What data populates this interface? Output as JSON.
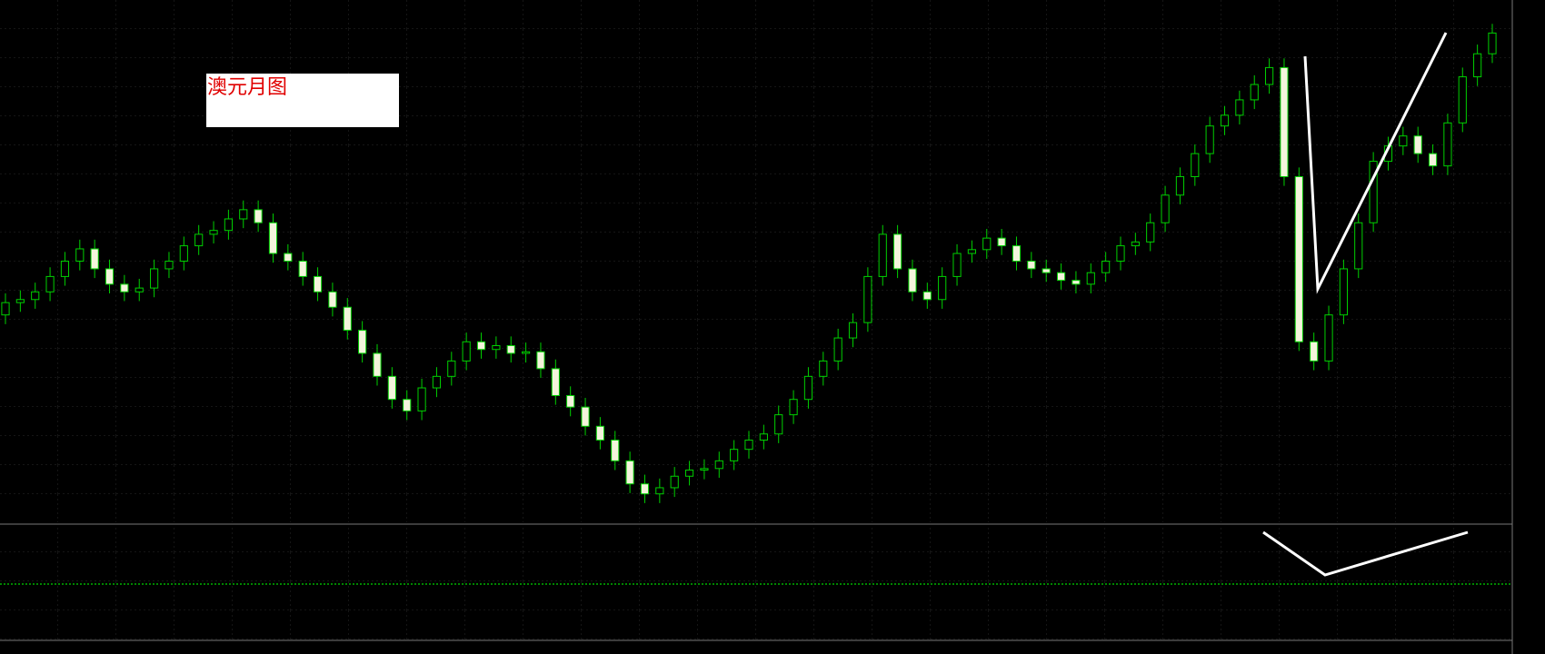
{
  "chart_data": {
    "type": "candlestick",
    "annotation": "澳元月图",
    "up_color": "#00d000",
    "down_color": "#f4f4dc",
    "ylim": [
      0.45,
      1.13
    ],
    "ohlc": [
      [
        0.72,
        0.748,
        0.708,
        0.736
      ],
      [
        0.736,
        0.752,
        0.724,
        0.74
      ],
      [
        0.74,
        0.762,
        0.728,
        0.75
      ],
      [
        0.75,
        0.782,
        0.738,
        0.77
      ],
      [
        0.77,
        0.802,
        0.758,
        0.79
      ],
      [
        0.79,
        0.818,
        0.778,
        0.806
      ],
      [
        0.806,
        0.818,
        0.768,
        0.78
      ],
      [
        0.78,
        0.792,
        0.748,
        0.76
      ],
      [
        0.76,
        0.772,
        0.738,
        0.75
      ],
      [
        0.75,
        0.767,
        0.738,
        0.755
      ],
      [
        0.755,
        0.792,
        0.743,
        0.78
      ],
      [
        0.78,
        0.802,
        0.768,
        0.79
      ],
      [
        0.79,
        0.822,
        0.778,
        0.81
      ],
      [
        0.81,
        0.837,
        0.798,
        0.825
      ],
      [
        0.825,
        0.842,
        0.813,
        0.83
      ],
      [
        0.83,
        0.857,
        0.818,
        0.845
      ],
      [
        0.845,
        0.869,
        0.833,
        0.857
      ],
      [
        0.857,
        0.869,
        0.828,
        0.84
      ],
      [
        0.84,
        0.852,
        0.788,
        0.8
      ],
      [
        0.8,
        0.812,
        0.778,
        0.79
      ],
      [
        0.79,
        0.802,
        0.758,
        0.77
      ],
      [
        0.77,
        0.782,
        0.738,
        0.75
      ],
      [
        0.75,
        0.762,
        0.718,
        0.73
      ],
      [
        0.73,
        0.742,
        0.688,
        0.7
      ],
      [
        0.7,
        0.712,
        0.658,
        0.67
      ],
      [
        0.67,
        0.682,
        0.628,
        0.64
      ],
      [
        0.64,
        0.652,
        0.598,
        0.61
      ],
      [
        0.61,
        0.622,
        0.583,
        0.595
      ],
      [
        0.595,
        0.637,
        0.583,
        0.625
      ],
      [
        0.625,
        0.652,
        0.613,
        0.64
      ],
      [
        0.64,
        0.672,
        0.628,
        0.66
      ],
      [
        0.66,
        0.697,
        0.648,
        0.685
      ],
      [
        0.685,
        0.697,
        0.663,
        0.675
      ],
      [
        0.675,
        0.692,
        0.663,
        0.68
      ],
      [
        0.68,
        0.692,
        0.658,
        0.67
      ],
      [
        0.67,
        0.684,
        0.658,
        0.672
      ],
      [
        0.672,
        0.684,
        0.638,
        0.65
      ],
      [
        0.65,
        0.662,
        0.603,
        0.615
      ],
      [
        0.615,
        0.627,
        0.588,
        0.6
      ],
      [
        0.6,
        0.612,
        0.563,
        0.575
      ],
      [
        0.575,
        0.587,
        0.545,
        0.557
      ],
      [
        0.557,
        0.569,
        0.518,
        0.53
      ],
      [
        0.53,
        0.542,
        0.488,
        0.5
      ],
      [
        0.5,
        0.512,
        0.475,
        0.487
      ],
      [
        0.487,
        0.507,
        0.475,
        0.495
      ],
      [
        0.495,
        0.522,
        0.483,
        0.51
      ],
      [
        0.51,
        0.53,
        0.498,
        0.518
      ],
      [
        0.518,
        0.532,
        0.506,
        0.52
      ],
      [
        0.52,
        0.542,
        0.508,
        0.53
      ],
      [
        0.53,
        0.557,
        0.518,
        0.545
      ],
      [
        0.545,
        0.569,
        0.533,
        0.557
      ],
      [
        0.557,
        0.577,
        0.545,
        0.565
      ],
      [
        0.565,
        0.602,
        0.553,
        0.59
      ],
      [
        0.59,
        0.622,
        0.578,
        0.61
      ],
      [
        0.61,
        0.652,
        0.598,
        0.64
      ],
      [
        0.64,
        0.672,
        0.628,
        0.66
      ],
      [
        0.66,
        0.702,
        0.648,
        0.69
      ],
      [
        0.69,
        0.722,
        0.678,
        0.71
      ],
      [
        0.71,
        0.782,
        0.698,
        0.77
      ],
      [
        0.77,
        0.837,
        0.758,
        0.825
      ],
      [
        0.825,
        0.837,
        0.768,
        0.78
      ],
      [
        0.78,
        0.792,
        0.738,
        0.75
      ],
      [
        0.75,
        0.762,
        0.728,
        0.74
      ],
      [
        0.74,
        0.782,
        0.728,
        0.77
      ],
      [
        0.77,
        0.812,
        0.758,
        0.8
      ],
      [
        0.8,
        0.817,
        0.788,
        0.805
      ],
      [
        0.805,
        0.832,
        0.793,
        0.82
      ],
      [
        0.82,
        0.832,
        0.798,
        0.81
      ],
      [
        0.81,
        0.822,
        0.778,
        0.79
      ],
      [
        0.79,
        0.802,
        0.768,
        0.78
      ],
      [
        0.78,
        0.792,
        0.763,
        0.775
      ],
      [
        0.775,
        0.787,
        0.753,
        0.765
      ],
      [
        0.765,
        0.777,
        0.748,
        0.76
      ],
      [
        0.76,
        0.787,
        0.748,
        0.775
      ],
      [
        0.775,
        0.802,
        0.763,
        0.79
      ],
      [
        0.79,
        0.822,
        0.778,
        0.81
      ],
      [
        0.81,
        0.827,
        0.798,
        0.815
      ],
      [
        0.815,
        0.852,
        0.803,
        0.84
      ],
      [
        0.84,
        0.888,
        0.828,
        0.876
      ],
      [
        0.876,
        0.912,
        0.864,
        0.9
      ],
      [
        0.9,
        0.942,
        0.888,
        0.93
      ],
      [
        0.93,
        0.978,
        0.918,
        0.966
      ],
      [
        0.966,
        0.992,
        0.954,
        0.98
      ],
      [
        0.98,
        1.012,
        0.968,
        1.0
      ],
      [
        1.0,
        1.032,
        0.988,
        1.02
      ],
      [
        1.02,
        1.054,
        1.008,
        1.042
      ],
      [
        1.042,
        1.054,
        0.888,
        0.9
      ],
      [
        0.9,
        0.912,
        0.673,
        0.685
      ],
      [
        0.685,
        0.697,
        0.648,
        0.66
      ],
      [
        0.66,
        0.732,
        0.648,
        0.72
      ],
      [
        0.72,
        0.792,
        0.708,
        0.78
      ],
      [
        0.78,
        0.852,
        0.768,
        0.84
      ],
      [
        0.84,
        0.932,
        0.828,
        0.92
      ],
      [
        0.92,
        0.952,
        0.908,
        0.94
      ],
      [
        0.94,
        0.965,
        0.928,
        0.953
      ],
      [
        0.953,
        0.965,
        0.918,
        0.93
      ],
      [
        0.93,
        0.942,
        0.902,
        0.914
      ],
      [
        0.914,
        0.982,
        0.902,
        0.97
      ],
      [
        0.97,
        1.042,
        0.958,
        1.03
      ],
      [
        1.03,
        1.072,
        1.018,
        1.06
      ],
      [
        1.06,
        1.099,
        1.048,
        1.087
      ]
    ]
  }
}
